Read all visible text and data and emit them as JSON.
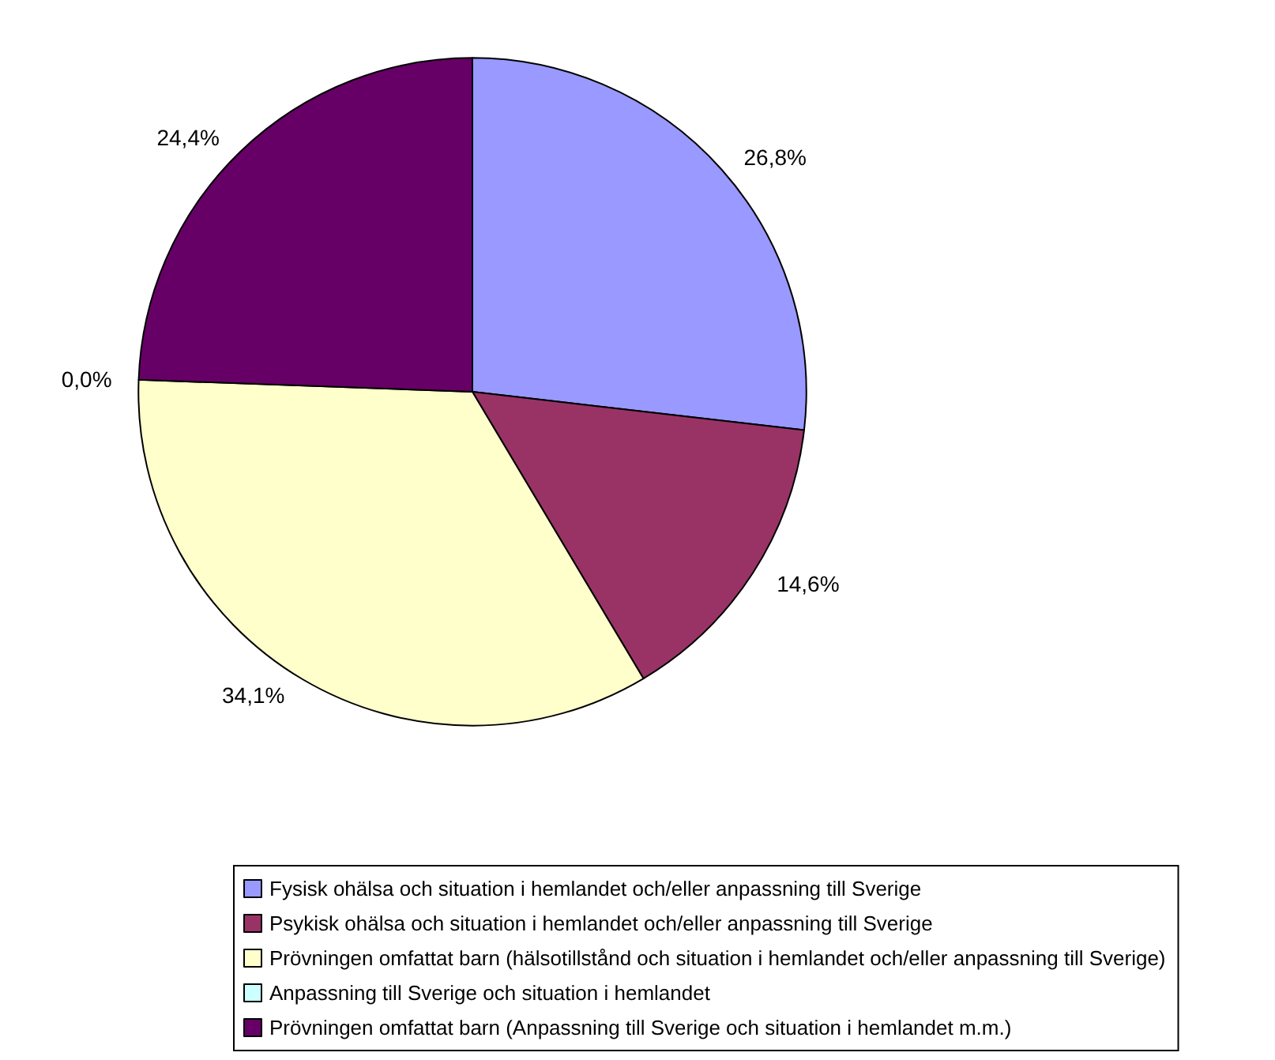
{
  "chart_data": {
    "type": "pie",
    "categories": [
      "Fysisk ohälsa och situation i hemlandet och/eller anpassning till Sverige",
      "Psykisk ohälsa och situation i hemlandet och/eller anpassning till Sverige",
      "Prövningen omfattat barn (hälsotillstånd och situation i hemlandet och/eller anpassning till Sverige)",
      "Anpassning till Sverige och situation i hemlandet",
      "Prövningen omfattat barn (Anpassning till Sverige och situation i hemlandet m.m.)"
    ],
    "values": [
      26.8,
      14.6,
      34.1,
      0.0,
      24.4
    ],
    "colors": [
      "#9999ff",
      "#993366",
      "#ffffcc",
      "#ccffff",
      "#660066"
    ],
    "value_labels": [
      "26,8%",
      "14,6%",
      "34,1%",
      "0,0%",
      "24,4%"
    ],
    "legend": "bottom"
  }
}
